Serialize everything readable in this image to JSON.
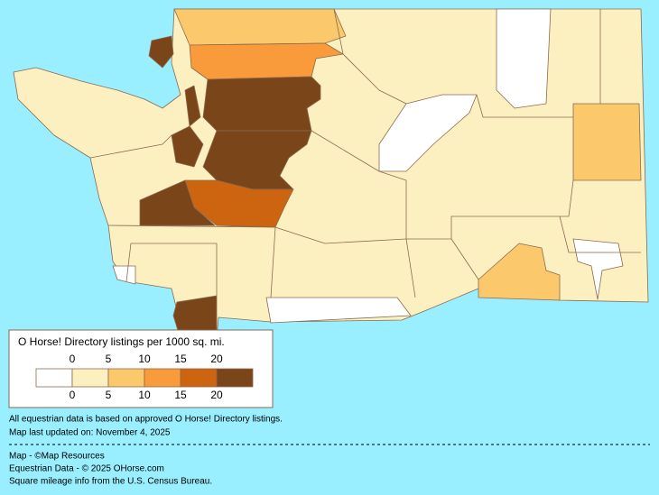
{
  "legend": {
    "title": "O Horse! Directory listings per 1000 sq. mi.",
    "top_labels": [
      0,
      5,
      10,
      15,
      20
    ],
    "bottom_labels": [
      0,
      5,
      10,
      15,
      20
    ],
    "colors": [
      "#ffffff",
      "#fdf0c0",
      "#fbc96b",
      "#f99a3b",
      "#cc6410",
      "#7a4519"
    ]
  },
  "notes": [
    "All equestrian data is based on approved O Horse! Directory listings.",
    "Map last updated on: November 4, 2025"
  ],
  "credits": [
    "Map - ©Map Resources",
    "Equestrian Data - © 2025 OHorse.com",
    "Square mileage info from the U.S. Census Bureau."
  ]
}
